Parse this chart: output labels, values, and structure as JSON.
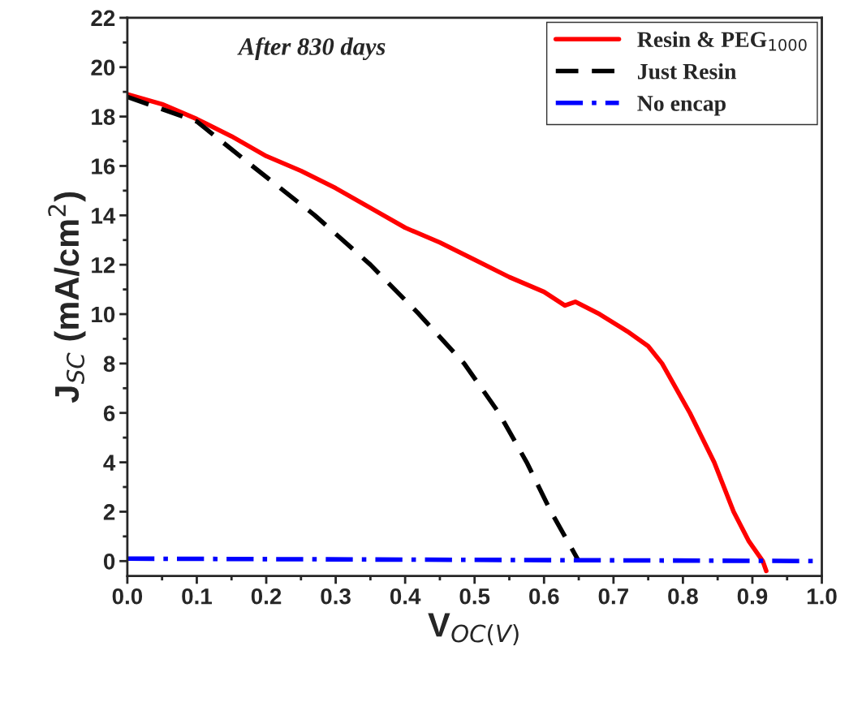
{
  "chart_data": {
    "type": "line",
    "xlabel": "V$_{OC(V)}$",
    "ylabel": "J$_{SC}$ (mA/cm$^{2}$)",
    "xlim": [
      0.0,
      1.0
    ],
    "xticks": [
      {
        "value": 0,
        "label": "0.0"
      },
      0.1,
      0.2,
      0.3,
      0.4,
      0.5,
      0.6,
      0.7,
      0.8,
      0.9,
      {
        "value": 1,
        "label": "1.0"
      }
    ],
    "ylim": [
      -0.6,
      22
    ],
    "yticks": [
      0,
      2,
      4,
      6,
      8,
      10,
      12,
      14,
      16,
      18,
      20,
      22
    ],
    "grid": false,
    "legend": "top right",
    "annotations": [
      "After 830 days"
    ],
    "series": [
      {
        "name": "Resin & PEG$_{1000}$",
        "color": "#ff0000",
        "line_style": "solid",
        "x": [
          0,
          0.05,
          0.1,
          0.15,
          0.2,
          0.25,
          0.3,
          0.35,
          0.4,
          0.45,
          0.5,
          0.55,
          0.6,
          0.63,
          0.645,
          0.68,
          0.72,
          0.75,
          0.77,
          0.81,
          0.845,
          0.873,
          0.895,
          0.915,
          0.92
        ],
        "values": [
          18.9,
          18.5,
          17.9,
          17.2,
          16.4,
          15.8,
          15.1,
          14.3,
          13.5,
          12.9,
          12.2,
          11.5,
          10.9,
          10.35,
          10.5,
          10.0,
          9.3,
          8.7,
          8.0,
          6.0,
          4.0,
          2.0,
          0.8,
          0.0,
          -0.4
        ]
      },
      {
        "name": "Just Resin",
        "color": "#000000",
        "line_style": "dashed",
        "x": [
          0,
          0.1,
          0.18,
          0.27,
          0.35,
          0.42,
          0.485,
          0.535,
          0.575,
          0.61,
          0.65
        ],
        "values": [
          18.8,
          17.8,
          16.0,
          14.0,
          12.0,
          10.0,
          8.0,
          6.0,
          4.0,
          2.0,
          0.0
        ]
      },
      {
        "name": "No encap",
        "color": "#0000ff",
        "line_style": "dashdot",
        "x": [
          0,
          1.0
        ],
        "values": [
          0.1,
          0.0
        ]
      }
    ]
  }
}
